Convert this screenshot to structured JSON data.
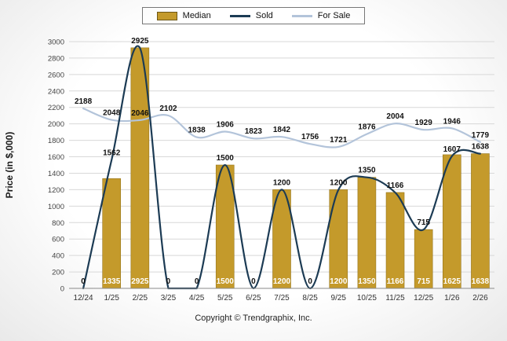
{
  "page": {
    "copyright": "Copyright © Trendgraphix, Inc."
  },
  "chart_data": {
    "type": "combo",
    "categories": [
      "12/24",
      "1/25",
      "2/25",
      "3/25",
      "4/25",
      "5/25",
      "6/25",
      "7/25",
      "8/25",
      "9/25",
      "10/25",
      "11/25",
      "12/25",
      "1/26",
      "2/26"
    ],
    "series": [
      {
        "name": "Median",
        "type": "bar",
        "color": "#C49A2B",
        "values": [
          0,
          1335,
          2925,
          0,
          0,
          1500,
          0,
          1200,
          0,
          1200,
          1350,
          1166,
          715,
          1625,
          1638
        ]
      },
      {
        "name": "Sold",
        "type": "line",
        "color": "#1C3B54",
        "values": [
          0,
          1562,
          2925,
          0,
          0,
          1500,
          0,
          1200,
          0,
          1200,
          1350,
          1166,
          715,
          1607,
          1638
        ]
      },
      {
        "name": "For Sale",
        "type": "line",
        "color": "#B3C4DA",
        "values": [
          2188,
          2048,
          2046,
          2102,
          1838,
          1906,
          1823,
          1842,
          1756,
          1721,
          1876,
          2004,
          1929,
          1946,
          1779
        ]
      }
    ],
    "xlabel": "",
    "ylabel": "Price (in $,000)",
    "ylim": [
      0,
      3000
    ],
    "ytick_step": 200,
    "grid": true,
    "legend_position": "top",
    "colors": {
      "grid": "#D8D8D8",
      "axis": "#8A8A8A",
      "tick_label": "#444444",
      "value_label": "#111111",
      "bar_value_label": "#FFFFFF"
    }
  }
}
